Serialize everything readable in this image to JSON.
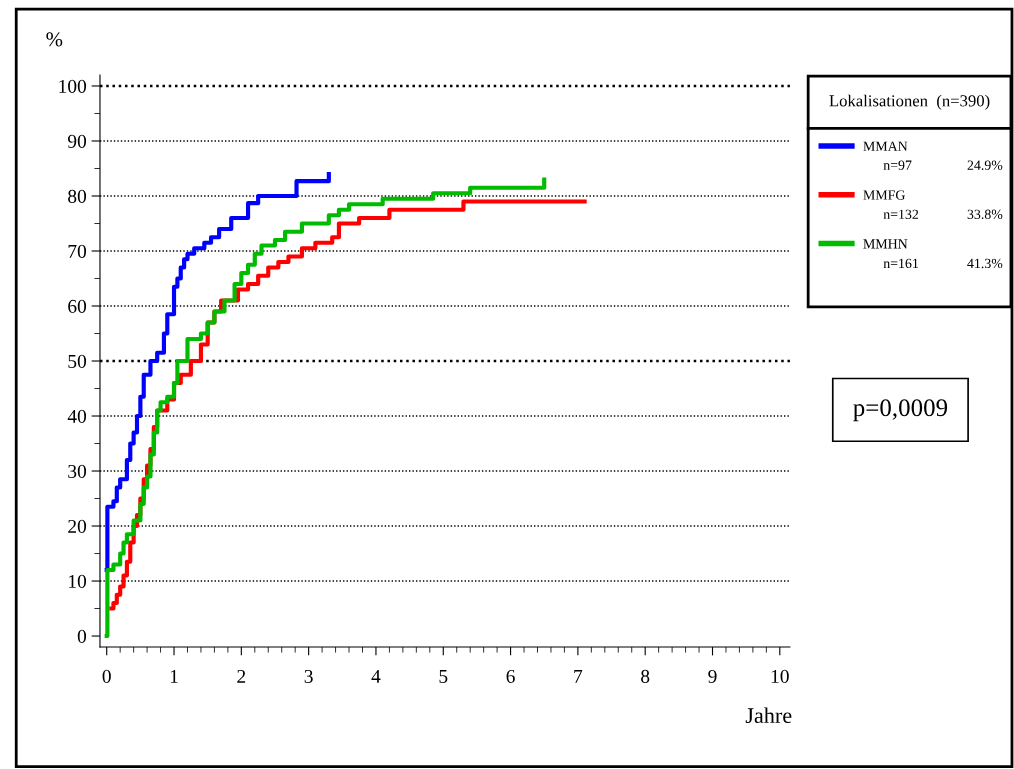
{
  "chart_data": {
    "type": "step",
    "ylabel": "%",
    "xlabel": "Jahre",
    "legend_title": "Lokalisationen  (n=390)",
    "xlim": [
      -0.1,
      10.15
    ],
    "ylim": [
      -2,
      102
    ],
    "xticks": [
      0,
      1,
      2,
      3,
      4,
      5,
      6,
      7,
      8,
      9,
      10
    ],
    "yticks": [
      0,
      10,
      20,
      30,
      40,
      50,
      60,
      70,
      80,
      90,
      100
    ],
    "grid": "y",
    "legend": "right",
    "line_style": "solid",
    "annotations": [
      "n=97",
      "24.9%",
      "n=132",
      "33.8%",
      "n=161",
      "41.3%",
      "p=0,0009"
    ],
    "series": [
      {
        "name": "MMAN",
        "color": "#0000ff",
        "x": [
          0,
          0.01,
          0.1,
          0.15,
          0.2,
          0.3,
          0.35,
          0.4,
          0.45,
          0.5,
          0.55,
          0.65,
          0.75,
          0.85,
          0.9,
          1.0,
          1.05,
          1.1,
          1.15,
          1.2,
          1.3,
          1.45,
          1.55,
          1.67,
          1.85,
          2.1,
          2.25,
          2.82,
          3.3,
          3.3
        ],
        "values": [
          12,
          23.5,
          24.5,
          27,
          28.5,
          32,
          35,
          37,
          40,
          43.5,
          47.5,
          50,
          51.5,
          55,
          58.5,
          63.5,
          65,
          67,
          68.5,
          69.5,
          70.5,
          71.5,
          72.5,
          74,
          76,
          78.7,
          80,
          82.7,
          82.7,
          84
        ]
      },
      {
        "name": "MMFG",
        "color": "#ff0000",
        "x": [
          0.07,
          0.1,
          0.15,
          0.2,
          0.25,
          0.3,
          0.35,
          0.4,
          0.45,
          0.5,
          0.55,
          0.6,
          0.65,
          0.7,
          0.75,
          0.9,
          1.0,
          1.1,
          1.25,
          1.4,
          1.5,
          1.6,
          1.7,
          1.95,
          2.1,
          2.25,
          2.4,
          2.55,
          2.7,
          2.9,
          3.1,
          3.35,
          3.45,
          3.75,
          4.2,
          5.3,
          7.1
        ],
        "values": [
          5,
          6,
          7.5,
          9,
          11,
          13.5,
          17,
          20,
          22,
          25,
          28.5,
          31,
          34,
          38,
          41,
          43,
          46,
          47.5,
          50,
          53,
          57,
          59,
          61,
          63,
          64,
          65.5,
          67,
          68,
          69,
          70.5,
          71.5,
          72.5,
          75,
          76,
          77.5,
          79,
          79
        ]
      },
      {
        "name": "MMHN",
        "color": "#00bb00",
        "x": [
          0,
          0.01,
          0.1,
          0.2,
          0.25,
          0.3,
          0.4,
          0.5,
          0.55,
          0.6,
          0.65,
          0.7,
          0.75,
          0.8,
          0.9,
          1.0,
          1.05,
          1.2,
          1.4,
          1.5,
          1.6,
          1.75,
          1.9,
          2.0,
          2.1,
          2.2,
          2.3,
          2.5,
          2.65,
          2.9,
          3.3,
          3.45,
          3.6,
          4.1,
          4.85,
          5.4,
          6.5,
          6.5
        ],
        "values": [
          0,
          12,
          13,
          15,
          17,
          18.5,
          21,
          24,
          27,
          29,
          33,
          37,
          41,
          42.5,
          43.5,
          46,
          50,
          54,
          55,
          57,
          59,
          61,
          64,
          66,
          67.5,
          69.5,
          71,
          72,
          73.5,
          75,
          76.5,
          77.5,
          78.5,
          79.5,
          80.5,
          81.5,
          81.5,
          83
        ]
      }
    ]
  }
}
